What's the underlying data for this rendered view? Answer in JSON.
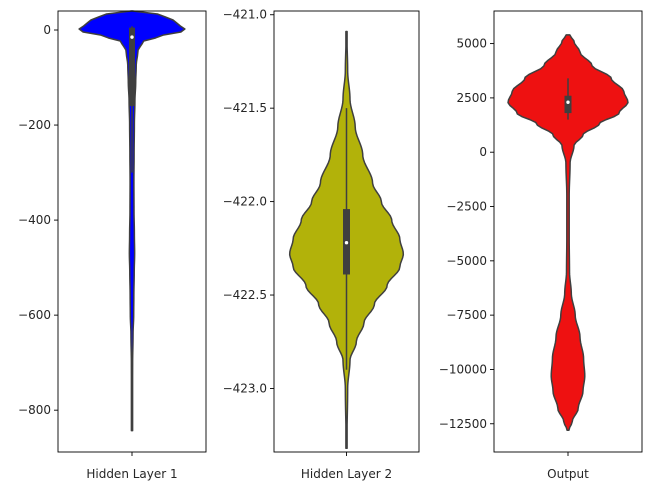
{
  "chart_data": [
    {
      "type": "violin",
      "title": "",
      "xlabel": "",
      "ylabel": "",
      "category": "Hidden Layer 1",
      "color": "#0000ff",
      "ylim": [
        -888,
        40
      ],
      "yticks": [
        0,
        -200,
        -400,
        -600,
        -800
      ],
      "ytick_labels": [
        "0",
        "−200",
        "−400",
        "−600",
        "−800"
      ],
      "box": {
        "q1": -160,
        "median": -15,
        "q3": 5,
        "whisker_low": -300,
        "whisker_high": 8
      },
      "data_min": -843,
      "data_max": 40,
      "density": [
        [
          40,
          0.01
        ],
        [
          36,
          0.42
        ],
        [
          30,
          0.6
        ],
        [
          20,
          0.78
        ],
        [
          10,
          0.9
        ],
        [
          3,
          1.0
        ],
        [
          -5,
          0.92
        ],
        [
          -12,
          0.55
        ],
        [
          -25,
          0.2
        ],
        [
          -45,
          0.11
        ],
        [
          -75,
          0.08
        ],
        [
          -110,
          0.07
        ],
        [
          -150,
          0.055
        ],
        [
          -200,
          0.045
        ],
        [
          -260,
          0.04
        ],
        [
          -320,
          0.036
        ],
        [
          -380,
          0.038
        ],
        [
          -430,
          0.045
        ],
        [
          -470,
          0.05
        ],
        [
          -510,
          0.042
        ],
        [
          -560,
          0.035
        ],
        [
          -600,
          0.032
        ],
        [
          -640,
          0.02
        ],
        [
          -700,
          0.012
        ],
        [
          -780,
          0.01
        ],
        [
          -843,
          0.006
        ]
      ]
    },
    {
      "type": "violin",
      "title": "",
      "xlabel": "",
      "ylabel": "",
      "category": "Hidden Layer 2",
      "color": "#b2b20a",
      "ylim": [
        -423.34,
        -420.98
      ],
      "yticks": [
        -421.0,
        -421.5,
        -422.0,
        -422.5,
        -423.0
      ],
      "ytick_labels": [
        "−421.0",
        "−421.5",
        "−422.0",
        "−422.5",
        "−423.0"
      ],
      "box": {
        "q1": -422.39,
        "median": -422.22,
        "q3": -422.04,
        "whisker_low": -422.9,
        "whisker_high": -421.5
      },
      "data_min": -423.32,
      "data_max": -421.09,
      "density": [
        [
          -421.09,
          0.005
        ],
        [
          -421.3,
          0.02
        ],
        [
          -421.45,
          0.06
        ],
        [
          -421.6,
          0.15
        ],
        [
          -421.75,
          0.28
        ],
        [
          -421.9,
          0.45
        ],
        [
          -422.0,
          0.6
        ],
        [
          -422.1,
          0.78
        ],
        [
          -422.2,
          0.92
        ],
        [
          -422.28,
          0.98
        ],
        [
          -422.35,
          0.92
        ],
        [
          -422.45,
          0.7
        ],
        [
          -422.55,
          0.48
        ],
        [
          -422.65,
          0.3
        ],
        [
          -422.75,
          0.17
        ],
        [
          -422.85,
          0.06
        ],
        [
          -423.0,
          0.02
        ],
        [
          -423.32,
          0.005
        ]
      ]
    },
    {
      "type": "violin",
      "title": "",
      "xlabel": "",
      "ylabel": "",
      "category": "Output",
      "color": "#ee1111",
      "ylim": [
        -13800,
        6500
      ],
      "yticks": [
        5000,
        2500,
        0,
        -2500,
        -5000,
        -7500,
        -10000,
        -12500
      ],
      "ytick_labels": [
        "5000",
        "2500",
        "0",
        "−2500",
        "−5000",
        "−7500",
        "−10000",
        "−12500"
      ],
      "box": {
        "q1": 1800,
        "median": 2300,
        "q3": 2600,
        "whisker_low": 1500,
        "whisker_high": 3400
      },
      "data_min": -12800,
      "data_max": 5400,
      "density": [
        [
          5400,
          0.03
        ],
        [
          5100,
          0.1
        ],
        [
          4600,
          0.2
        ],
        [
          4000,
          0.4
        ],
        [
          3400,
          0.72
        ],
        [
          2800,
          0.93
        ],
        [
          2300,
          1.0
        ],
        [
          1800,
          0.85
        ],
        [
          1300,
          0.52
        ],
        [
          800,
          0.25
        ],
        [
          300,
          0.1
        ],
        [
          -500,
          0.035
        ],
        [
          -2000,
          0.02
        ],
        [
          -4000,
          0.02
        ],
        [
          -5500,
          0.025
        ],
        [
          -6500,
          0.055
        ],
        [
          -7500,
          0.12
        ],
        [
          -8500,
          0.2
        ],
        [
          -9500,
          0.26
        ],
        [
          -10300,
          0.28
        ],
        [
          -11000,
          0.25
        ],
        [
          -11800,
          0.17
        ],
        [
          -12400,
          0.07
        ],
        [
          -12800,
          0.015
        ]
      ]
    }
  ]
}
